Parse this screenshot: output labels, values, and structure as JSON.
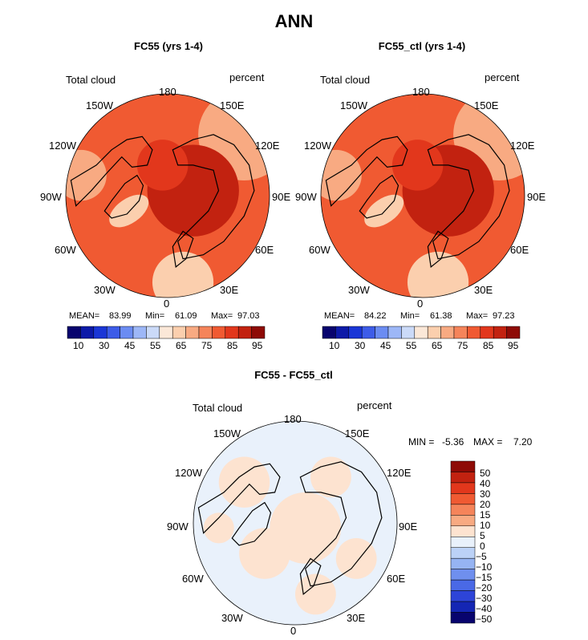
{
  "figure": {
    "title": "ANN",
    "colors": {
      "abs_scale": [
        "#08046e",
        "#0d1aa8",
        "#1a36d6",
        "#3d5ce8",
        "#6b8cf2",
        "#9db7f7",
        "#cbdaf8",
        "#fbe8d8",
        "#fbcfae",
        "#f8aa82",
        "#f5845a",
        "#f05a32",
        "#e2371c",
        "#c22210",
        "#8e0b06"
      ],
      "diff_scale": [
        "#8e0b06",
        "#c22210",
        "#e2371c",
        "#f05a32",
        "#f5845a",
        "#f8aa82",
        "#fde3d0",
        "#e9f1fb",
        "#bcd2f7",
        "#96b4f3",
        "#6f8fee",
        "#4a69e6",
        "#2d44d8",
        "#1426b4",
        "#08046e"
      ],
      "land_outline": "#000000"
    }
  },
  "chart_data": [
    {
      "type": "heatmap",
      "projection": "north-polar-stereographic",
      "title": "FC55 (yrs 1-4)",
      "left_label": "Total cloud",
      "right_label": "percent",
      "lon_labels": [
        "180",
        "150E",
        "120E",
        "90E",
        "60E",
        "30E",
        "0",
        "30W",
        "60W",
        "90W",
        "120W",
        "150W"
      ],
      "stats": {
        "mean_label": "MEAN=",
        "mean": "83.99",
        "min_label": "Min=",
        "min": "61.09",
        "max_label": "Max=",
        "max": "97.03"
      },
      "colorbar_ticks": [
        "10",
        "30",
        "45",
        "55",
        "65",
        "75",
        "85",
        "95"
      ]
    },
    {
      "type": "heatmap",
      "projection": "north-polar-stereographic",
      "title": "FC55_ctl (yrs 1-4)",
      "left_label": "Total cloud",
      "right_label": "percent",
      "lon_labels": [
        "180",
        "150E",
        "120E",
        "90E",
        "60E",
        "30E",
        "0",
        "30W",
        "60W",
        "90W",
        "120W",
        "150W"
      ],
      "stats": {
        "mean_label": "MEAN=",
        "mean": "84.22",
        "min_label": "Min=",
        "min": "61.38",
        "max_label": "Max=",
        "max": "97.23"
      },
      "colorbar_ticks": [
        "10",
        "30",
        "45",
        "55",
        "65",
        "75",
        "85",
        "95"
      ]
    },
    {
      "type": "heatmap",
      "projection": "north-polar-stereographic",
      "title": "FC55 - FC55_ctl",
      "left_label": "Total cloud",
      "right_label": "percent",
      "lon_labels": [
        "180",
        "150E",
        "120E",
        "90E",
        "60E",
        "30E",
        "0",
        "30W",
        "60W",
        "90W",
        "120W",
        "150W"
      ],
      "stats": {
        "min_label": "MIN =",
        "min": "-5.36",
        "max_label": "MAX =",
        "max": "7.20"
      },
      "colorbar_ticks": [
        "50",
        "40",
        "30",
        "20",
        "15",
        "10",
        "5",
        "0",
        "−5",
        "−10",
        "−15",
        "−20",
        "−30",
        "−40",
        "−50"
      ]
    }
  ]
}
